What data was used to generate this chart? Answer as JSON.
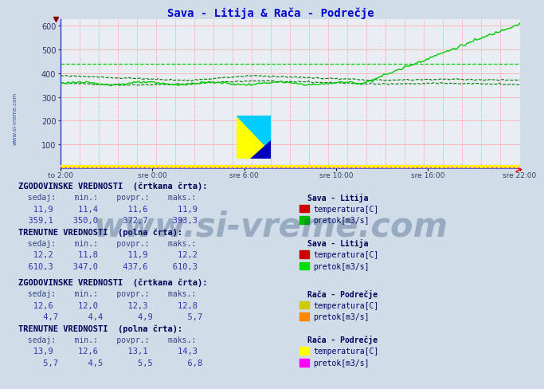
{
  "title": "Sava - Litija & Rača - Podrečje",
  "title_color": "#0000cc",
  "bg_color": "#d0dce8",
  "plot_bg_color": "#e8eef4",
  "ylim": [
    0,
    630
  ],
  "yticks": [
    100,
    200,
    300,
    400,
    500,
    600
  ],
  "xtick_labels": [
    "to 2:00",
    "sre 0:00",
    "sre 6:00",
    "sre 10:00",
    "sre 16:00",
    "sre 22:00"
  ],
  "n_points": 288,
  "watermark": "www.si-vreme.com",
  "sava_hist_min": 350.0,
  "sava_hist_max": 393.3,
  "sava_hist_avg": 372.7,
  "sava_curr_min": 347.0,
  "sava_curr_max": 610.3,
  "sava_curr_avg": 437.6,
  "raca_hist_avg": 4.9,
  "raca_curr_max": 6.8,
  "sava_hist_dashed_avg": 440,
  "colors": {
    "grid_v": "#ff8888",
    "grid_h": "#ffaaaa",
    "sava_pretok_curr": "#00cc00",
    "sava_pretok_hist": "#007700",
    "sava_pretok_hist_avg": "#00bb00",
    "sava_temp_curr": "#cc0000",
    "sava_temp_hist": "#cc0000",
    "raca_temp_hist": "#cccc00",
    "raca_temp_curr": "#ffff00",
    "raca_pretok_hist": "#ff8800",
    "raca_pretok_curr": "#ff00ff",
    "xline_yellow": "#ffff00",
    "xline_magenta": "#ff00ff",
    "spine": "#3333cc",
    "ytext": "#333399",
    "xtext": "#334466"
  },
  "table": {
    "hist_header": "ZGODOVINSKE VREDNOSTI  (črtkana črta):",
    "curr_header": "TRENUTNE VREDNOSTI  (polna črta):",
    "col_header": "  sedaj:    min.:    povpr.:    maks.:",
    "sava_label": "Sava - Litija",
    "raca_label": "Rača - Podrečje",
    "sava_hist_temp_vals": "   11,9     11,4      11,6      11,9",
    "sava_hist_pretok_vals": "  359,1    350,0     372,7     393,3",
    "sava_curr_temp_vals": "   12,2     11,8      11,9      12,2",
    "sava_curr_pretok_vals": "  610,3    347,0     437,6     610,3",
    "raca_hist_temp_vals": "   12,6     12,0      12,3      12,8",
    "raca_hist_pretok_vals": "     4,7      4,4       4,9       5,7",
    "raca_curr_temp_vals": "   13,9     12,6      13,1      14,3",
    "raca_curr_pretok_vals": "     5,7      4,5       5,5       6,8",
    "temp_label": "temperatura[C]",
    "pretok_label": "pretok[m3/s]",
    "sava_hist_temp_color": "#cc0000",
    "sava_hist_pretok_color": "#00bb00",
    "sava_curr_temp_color": "#cc0000",
    "sava_curr_pretok_color": "#00dd00",
    "raca_hist_temp_color": "#cccc00",
    "raca_hist_pretok_color": "#ff8800",
    "raca_curr_temp_color": "#ffff00",
    "raca_curr_pretok_color": "#ff00ff"
  }
}
